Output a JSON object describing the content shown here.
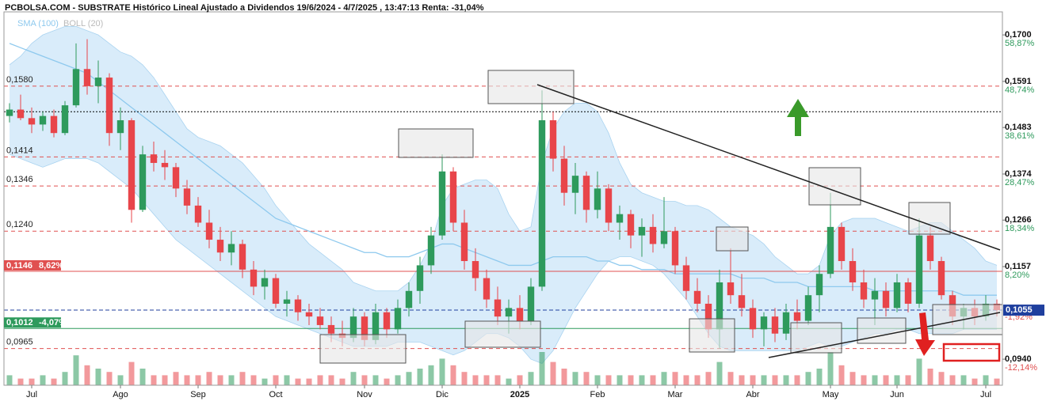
{
  "chart_data": {
    "type": "candlestick",
    "title": "PCBOLSA.COM - SUBSTRATE Histórico Lineal Ajustado a Dividendos 19/6/2024 - 4/7/2025 , 13:47:13 Renta: -31,04%",
    "up_color": "#2e9a5c",
    "down_color": "#e8454a",
    "ylim": [
      0.0879,
      0.1754
    ],
    "yticks": [
      {
        "value": 0.17,
        "label": "0,1700",
        "pct": "58,87%"
      },
      {
        "value": 0.1591,
        "label": "0,1591",
        "pct": "48,74%"
      },
      {
        "value": 0.1483,
        "label": "0,1483",
        "pct": "38,61%"
      },
      {
        "value": 0.1374,
        "label": "0,1374",
        "pct": "28,47%"
      },
      {
        "value": 0.1266,
        "label": "0,1266",
        "pct": "18,34%"
      },
      {
        "value": 0.1157,
        "label": "0,1157",
        "pct": "8,20%"
      },
      {
        "value": 0.094,
        "label": "0,0940",
        "pct": "-12,14%"
      }
    ],
    "last_price": {
      "value": 0.1055,
      "label": "0,1055",
      "pct": "-1,92%",
      "color": "#1f3f9e"
    },
    "levels": [
      {
        "value": 0.158,
        "label": "0,1580",
        "color": "#e05050",
        "style": "dashed"
      },
      {
        "value": 0.152,
        "color": "#000000",
        "style": "dotted"
      },
      {
        "value": 0.1414,
        "label": "0,1414",
        "color": "#e05050",
        "style": "dashed"
      },
      {
        "value": 0.1346,
        "label": "0,1346",
        "color": "#e05050",
        "style": "dashed"
      },
      {
        "value": 0.124,
        "label": "0,1240",
        "color": "#e05050",
        "style": "dashed"
      },
      {
        "value": 0.1146,
        "label": "0,1146",
        "pct": "8,62%",
        "color": "#e05050",
        "style": "solid",
        "box": true
      },
      {
        "value": 0.1012,
        "label": "0,1012",
        "pct": "-4,07%",
        "color": "#2e9a5c",
        "style": "solid",
        "box": true
      },
      {
        "value": 0.0965,
        "label": "0,0965",
        "color": "#e05050",
        "style": "dashed"
      }
    ],
    "categories": [
      null,
      null,
      "Jul",
      null,
      null,
      null,
      null,
      null,
      null,
      null,
      "Ago",
      null,
      null,
      null,
      null,
      null,
      null,
      "Sep",
      null,
      null,
      null,
      null,
      null,
      null,
      "Oct",
      null,
      null,
      null,
      null,
      null,
      null,
      null,
      "Nov",
      null,
      null,
      null,
      null,
      null,
      null,
      "Dic",
      null,
      null,
      null,
      null,
      null,
      null,
      "2025",
      null,
      null,
      null,
      null,
      null,
      null,
      "Feb",
      null,
      null,
      null,
      null,
      null,
      null,
      "Mar",
      null,
      null,
      null,
      null,
      null,
      null,
      "Abr",
      null,
      null,
      null,
      null,
      null,
      null,
      "May",
      null,
      null,
      null,
      null,
      null,
      "Jun",
      null,
      null,
      null,
      null,
      null,
      null,
      null,
      "Jul",
      null
    ],
    "candles": [
      [
        0.151,
        0.154,
        0.1495,
        0.1525
      ],
      [
        0.1525,
        0.156,
        0.15,
        0.1505
      ],
      [
        0.1505,
        0.153,
        0.147,
        0.149
      ],
      [
        0.149,
        0.152,
        0.1475,
        0.151
      ],
      [
        0.151,
        0.1525,
        0.146,
        0.147
      ],
      [
        0.147,
        0.1545,
        0.1465,
        0.1535
      ],
      [
        0.1535,
        0.168,
        0.153,
        0.162
      ],
      [
        0.162,
        0.169,
        0.156,
        0.158
      ],
      [
        0.158,
        0.164,
        0.154,
        0.16
      ],
      [
        0.16,
        0.161,
        0.144,
        0.147
      ],
      [
        0.147,
        0.153,
        0.143,
        0.15
      ],
      [
        0.15,
        0.1505,
        0.126,
        0.129
      ],
      [
        0.129,
        0.144,
        0.1285,
        0.142
      ],
      [
        0.142,
        0.145,
        0.138,
        0.14
      ],
      [
        0.14,
        0.143,
        0.136,
        0.139
      ],
      [
        0.139,
        0.14,
        0.132,
        0.134
      ],
      [
        0.134,
        0.136,
        0.128,
        0.13
      ],
      [
        0.13,
        0.132,
        0.125,
        0.126
      ],
      [
        0.126,
        0.129,
        0.12,
        0.122
      ],
      [
        0.122,
        0.125,
        0.117,
        0.119
      ],
      [
        0.119,
        0.124,
        0.116,
        0.121
      ],
      [
        0.121,
        0.122,
        0.113,
        0.115
      ],
      [
        0.115,
        0.117,
        0.109,
        0.111
      ],
      [
        0.111,
        0.115,
        0.108,
        0.113
      ],
      [
        0.113,
        0.114,
        0.106,
        0.107
      ],
      [
        0.107,
        0.11,
        0.104,
        0.108
      ],
      [
        0.108,
        0.109,
        0.103,
        0.105
      ],
      [
        0.105,
        0.107,
        0.102,
        0.104
      ],
      [
        0.104,
        0.106,
        0.101,
        0.102
      ],
      [
        0.102,
        0.104,
        0.098,
        0.1
      ],
      [
        0.1,
        0.103,
        0.097,
        0.099
      ],
      [
        0.099,
        0.106,
        0.098,
        0.104
      ],
      [
        0.104,
        0.105,
        0.097,
        0.0985
      ],
      [
        0.0985,
        0.107,
        0.0975,
        0.105
      ],
      [
        0.105,
        0.106,
        0.099,
        0.101
      ],
      [
        0.101,
        0.108,
        0.1,
        0.106
      ],
      [
        0.106,
        0.112,
        0.104,
        0.11
      ],
      [
        0.11,
        0.118,
        0.107,
        0.116
      ],
      [
        0.116,
        0.125,
        0.114,
        0.123
      ],
      [
        0.123,
        0.142,
        0.122,
        0.138
      ],
      [
        0.138,
        0.139,
        0.124,
        0.126
      ],
      [
        0.126,
        0.129,
        0.115,
        0.117
      ],
      [
        0.117,
        0.12,
        0.11,
        0.113
      ],
      [
        0.113,
        0.115,
        0.106,
        0.108
      ],
      [
        0.108,
        0.111,
        0.102,
        0.104
      ],
      [
        0.104,
        0.108,
        0.1,
        0.106
      ],
      [
        0.106,
        0.109,
        0.101,
        0.103
      ],
      [
        0.103,
        0.113,
        0.102,
        0.111
      ],
      [
        0.111,
        0.157,
        0.11,
        0.15
      ],
      [
        0.15,
        0.152,
        0.138,
        0.141
      ],
      [
        0.141,
        0.144,
        0.13,
        0.133
      ],
      [
        0.133,
        0.14,
        0.128,
        0.137
      ],
      [
        0.137,
        0.138,
        0.126,
        0.129
      ],
      [
        0.129,
        0.138,
        0.127,
        0.134
      ],
      [
        0.134,
        0.135,
        0.124,
        0.126
      ],
      [
        0.126,
        0.13,
        0.122,
        0.128
      ],
      [
        0.128,
        0.129,
        0.12,
        0.123
      ],
      [
        0.123,
        0.127,
        0.118,
        0.125
      ],
      [
        0.125,
        0.128,
        0.119,
        0.121
      ],
      [
        0.121,
        0.132,
        0.12,
        0.124
      ],
      [
        0.124,
        0.125,
        0.114,
        0.116
      ],
      [
        0.116,
        0.118,
        0.108,
        0.11
      ],
      [
        0.11,
        0.113,
        0.105,
        0.107
      ],
      [
        0.107,
        0.109,
        0.099,
        0.101
      ],
      [
        0.101,
        0.115,
        0.0965,
        0.112
      ],
      [
        0.112,
        0.12,
        0.107,
        0.109
      ],
      [
        0.109,
        0.114,
        0.104,
        0.106
      ],
      [
        0.106,
        0.108,
        0.099,
        0.101
      ],
      [
        0.101,
        0.105,
        0.097,
        0.104
      ],
      [
        0.104,
        0.106,
        0.098,
        0.1
      ],
      [
        0.1,
        0.107,
        0.0985,
        0.105
      ],
      [
        0.105,
        0.108,
        0.101,
        0.103
      ],
      [
        0.103,
        0.111,
        0.102,
        0.109
      ],
      [
        0.109,
        0.116,
        0.105,
        0.114
      ],
      [
        0.114,
        0.133,
        0.113,
        0.125
      ],
      [
        0.125,
        0.126,
        0.115,
        0.117
      ],
      [
        0.117,
        0.12,
        0.11,
        0.112
      ],
      [
        0.112,
        0.115,
        0.106,
        0.108
      ],
      [
        0.108,
        0.113,
        0.102,
        0.11
      ],
      [
        0.11,
        0.112,
        0.104,
        0.106
      ],
      [
        0.106,
        0.114,
        0.105,
        0.112
      ],
      [
        0.112,
        0.113,
        0.105,
        0.107
      ],
      [
        0.107,
        0.127,
        0.106,
        0.123
      ],
      [
        0.123,
        0.125,
        0.115,
        0.117
      ],
      [
        0.117,
        0.118,
        0.108,
        0.109
      ],
      [
        0.109,
        0.11,
        0.102,
        0.104
      ],
      [
        0.104,
        0.107,
        0.101,
        0.106
      ],
      [
        0.106,
        0.108,
        0.102,
        0.104
      ],
      [
        0.104,
        0.109,
        0.103,
        0.107
      ],
      [
        0.107,
        0.108,
        0.104,
        0.1055
      ]
    ],
    "volume": [
      3,
      2,
      2,
      3,
      2,
      4,
      9,
      6,
      5,
      4,
      3,
      7,
      5,
      3,
      3,
      4,
      3,
      3,
      4,
      3,
      3,
      4,
      3,
      2,
      3,
      3,
      2,
      2,
      3,
      3,
      2,
      4,
      3,
      3,
      2,
      3,
      4,
      5,
      6,
      8,
      6,
      4,
      3,
      3,
      3,
      2,
      3,
      4,
      10,
      7,
      5,
      4,
      4,
      3,
      3,
      3,
      3,
      3,
      3,
      4,
      4,
      3,
      3,
      4,
      7,
      4,
      3,
      3,
      3,
      3,
      3,
      3,
      4,
      5,
      10,
      6,
      4,
      3,
      3,
      3,
      3,
      3,
      8,
      5,
      4,
      3,
      3,
      2,
      3,
      2
    ],
    "sma": {
      "name": "SMA (100)",
      "color": "#8ec9ee",
      "values": [
        0.168,
        0.167,
        0.166,
        0.165,
        0.164,
        0.163,
        0.162,
        0.161,
        0.159,
        0.157,
        0.155,
        0.153,
        0.151,
        0.149,
        0.147,
        0.145,
        0.143,
        0.141,
        0.139,
        0.137,
        0.135,
        0.133,
        0.131,
        0.129,
        0.127,
        0.126,
        0.125,
        0.124,
        0.123,
        0.122,
        0.121,
        0.12,
        0.119,
        0.119,
        0.118,
        0.118,
        0.118,
        0.119,
        0.12,
        0.121,
        0.121,
        0.12,
        0.119,
        0.118,
        0.117,
        0.116,
        0.116,
        0.116,
        0.117,
        0.118,
        0.118,
        0.118,
        0.118,
        0.117,
        0.117,
        0.116,
        0.116,
        0.115,
        0.115,
        0.115,
        0.114,
        0.114,
        0.114,
        0.114,
        0.114,
        0.114,
        0.113,
        0.113,
        0.113,
        0.112,
        0.112,
        0.112,
        0.111,
        0.111,
        0.111,
        0.111,
        0.111,
        0.111,
        0.11,
        0.11,
        0.11,
        0.11,
        0.11,
        0.11,
        0.11,
        0.11,
        0.109,
        0.109,
        0.109,
        0.109
      ]
    },
    "bollinger": {
      "name": "BOLL (20)",
      "color": "#bfe0f6",
      "upper": [
        0.163,
        0.165,
        0.168,
        0.17,
        0.171,
        0.172,
        0.172,
        0.171,
        0.17,
        0.168,
        0.166,
        0.165,
        0.163,
        0.16,
        0.156,
        0.152,
        0.148,
        0.146,
        0.145,
        0.144,
        0.142,
        0.14,
        0.137,
        0.134,
        0.13,
        0.127,
        0.124,
        0.121,
        0.119,
        0.117,
        0.115,
        0.112,
        0.111,
        0.11,
        0.11,
        0.11,
        0.112,
        0.116,
        0.121,
        0.13,
        0.134,
        0.135,
        0.136,
        0.136,
        0.134,
        0.128,
        0.124,
        0.125,
        0.14,
        0.148,
        0.152,
        0.154,
        0.154,
        0.152,
        0.147,
        0.14,
        0.135,
        0.133,
        0.132,
        0.131,
        0.131,
        0.13,
        0.13,
        0.129,
        0.127,
        0.125,
        0.124,
        0.123,
        0.121,
        0.118,
        0.116,
        0.114,
        0.114,
        0.116,
        0.123,
        0.126,
        0.127,
        0.127,
        0.127,
        0.126,
        0.125,
        0.124,
        0.125,
        0.126,
        0.126,
        0.124,
        0.122,
        0.12,
        0.117,
        0.116
      ],
      "lower": [
        0.142,
        0.141,
        0.14,
        0.139,
        0.14,
        0.141,
        0.141,
        0.141,
        0.14,
        0.138,
        0.136,
        0.134,
        0.131,
        0.128,
        0.125,
        0.122,
        0.12,
        0.118,
        0.116,
        0.114,
        0.112,
        0.11,
        0.108,
        0.106,
        0.104,
        0.103,
        0.102,
        0.101,
        0.1,
        0.099,
        0.098,
        0.097,
        0.097,
        0.097,
        0.097,
        0.098,
        0.098,
        0.098,
        0.097,
        0.096,
        0.095,
        0.096,
        0.098,
        0.1,
        0.1,
        0.099,
        0.097,
        0.094,
        0.093,
        0.096,
        0.101,
        0.106,
        0.11,
        0.114,
        0.117,
        0.118,
        0.118,
        0.117,
        0.116,
        0.114,
        0.111,
        0.108,
        0.104,
        0.1,
        0.097,
        0.096,
        0.096,
        0.096,
        0.096,
        0.096,
        0.096,
        0.096,
        0.097,
        0.098,
        0.097,
        0.097,
        0.098,
        0.099,
        0.1,
        0.1,
        0.101,
        0.101,
        0.1,
        0.1,
        0.1,
        0.1,
        0.101,
        0.101,
        0.101,
        0.101
      ]
    }
  }
}
